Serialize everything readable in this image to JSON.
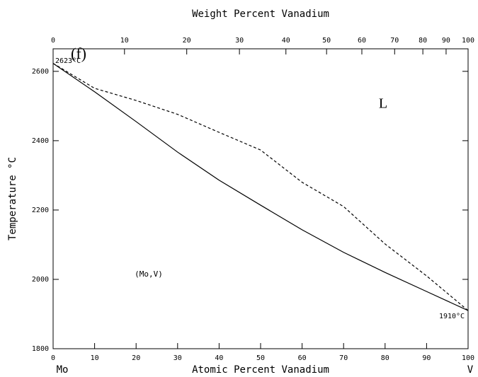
{
  "chart_data": {
    "type": "line",
    "title": "Weight Percent Vanadium",
    "xlabel": "Atomic Percent Vanadium",
    "ylabel": "Temperature °C",
    "x_end_labels": [
      "Mo",
      "V"
    ],
    "annotations": [
      "(f)",
      "2623°C",
      "L",
      "(Mo,V)",
      "1910°C"
    ],
    "x": [
      0,
      10,
      20,
      30,
      40,
      50,
      60,
      70,
      80,
      90,
      100
    ],
    "series": [
      {
        "color": "#000000",
        "style": "solid",
        "values": [
          2623,
          2541,
          2455,
          2367,
          2286,
          2214,
          2143,
          2078,
          2020,
          1965,
          1910
        ]
      },
      {
        "color": "#000000",
        "style": "dashed",
        "values": [
          2623,
          2551,
          2516,
          2476,
          2424,
          2373,
          2280,
          2210,
          2102,
          2010,
          1910
        ]
      }
    ],
    "xlim": [
      0,
      100
    ],
    "xticks": [
      0,
      10,
      20,
      30,
      40,
      50,
      60,
      70,
      80,
      90,
      100
    ],
    "ylim": [
      1800,
      2665
    ],
    "yticks": [
      1800,
      2000,
      2200,
      2400,
      2600
    ],
    "x2ticks": [
      0,
      {
        "value": 17.2,
        "label": "10"
      },
      {
        "value": 32.2,
        "label": "20"
      },
      {
        "value": 44.9,
        "label": "30"
      },
      {
        "value": 56.1,
        "label": "40"
      },
      {
        "value": 65.9,
        "label": "50"
      },
      {
        "value": 74.4,
        "label": "60"
      },
      {
        "value": 82.3,
        "label": "70"
      },
      {
        "value": 89.1,
        "label": "80"
      },
      {
        "value": 94.7,
        "label": "90"
      },
      100
    ],
    "grid": false
  }
}
